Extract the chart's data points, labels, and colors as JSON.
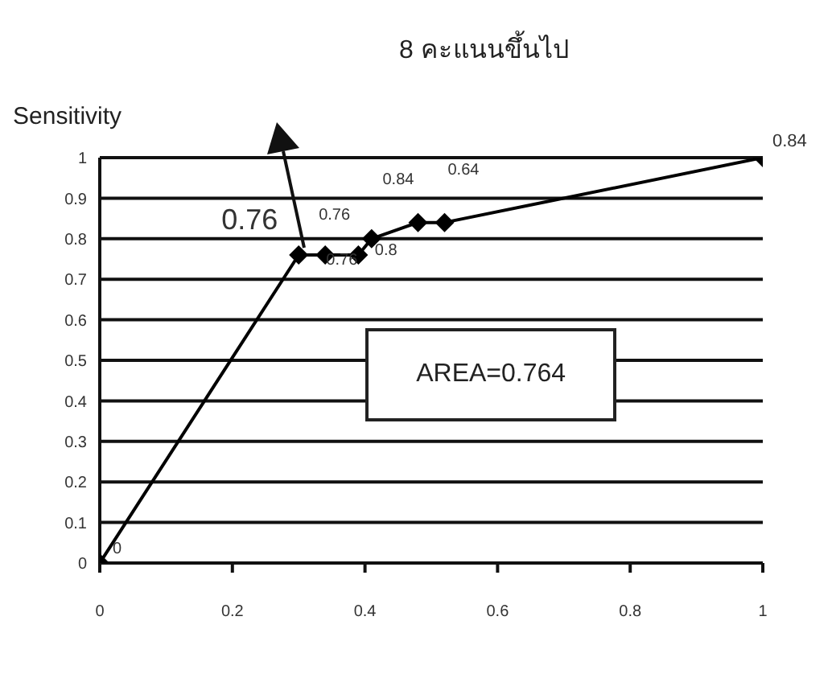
{
  "chart_data": {
    "type": "line",
    "ylabel": "Sensitivity",
    "annotations": [
      "8 คะแนนขึ้นไป",
      "AREA=0.764",
      {
        "text": "0",
        "x": 0,
        "y": 0
      },
      {
        "text": "0.76",
        "x": 0.3,
        "y": 0.76
      },
      {
        "text": "0.76",
        "x": 0.34,
        "y": 0.76
      },
      {
        "text": "0.76",
        "x": 0.39,
        "y": 0.76
      },
      {
        "text": "0.8",
        "x": 0.41,
        "y": 0.8
      },
      {
        "text": "0.84",
        "x": 0.48,
        "y": 0.84
      },
      {
        "text": "0.64",
        "x": 0.52,
        "y": 0.84
      },
      {
        "text": "0.84",
        "x": 1,
        "y": 1
      }
    ],
    "x": [
      0,
      0.3,
      0.34,
      0.39,
      0.41,
      0.48,
      0.52,
      1
    ],
    "values": [
      0,
      0.76,
      0.76,
      0.76,
      0.8,
      0.84,
      0.84,
      1
    ],
    "color": "#000000",
    "marker": "diamond",
    "line_style": "solid",
    "xlim": [
      0,
      1
    ],
    "xticks": [
      0,
      0.2,
      0.4,
      0.6,
      0.8,
      1
    ],
    "ylim": [
      0,
      1
    ],
    "yticks": [
      0,
      0.1,
      0.2,
      0.3,
      0.4,
      0.5,
      0.6,
      0.7,
      0.8,
      0.9,
      1
    ],
    "grid": "y",
    "legend": false
  }
}
